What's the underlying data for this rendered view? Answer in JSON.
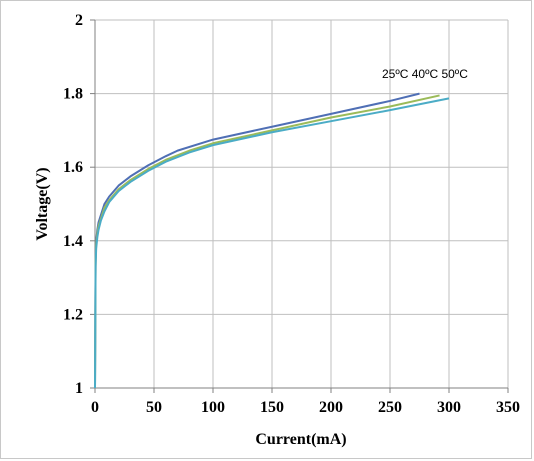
{
  "chart_data": {
    "type": "line",
    "title": "",
    "xlabel": "Current(mA)",
    "ylabel": "Voltage(V)",
    "xlim": [
      0,
      350
    ],
    "ylim": [
      1,
      2
    ],
    "xticks": [
      0,
      50,
      100,
      150,
      200,
      250,
      300,
      350
    ],
    "yticks": [
      1,
      1.2,
      1.4,
      1.6,
      1.8,
      2
    ],
    "ytick_labels": [
      "1",
      "1.2",
      "1.4",
      "1.6",
      "1.8",
      "2"
    ],
    "grid": true,
    "legend": "none",
    "annotation": "25ºC 40ºC 50ºC",
    "series": [
      {
        "color": "#4F6FB5",
        "x": [
          0,
          0.5,
          1,
          2,
          3,
          5,
          8,
          12,
          20,
          30,
          45,
          60,
          70,
          100,
          150,
          200,
          250,
          275
        ],
        "y": [
          1.0,
          1.35,
          1.4,
          1.43,
          1.45,
          1.47,
          1.5,
          1.52,
          1.55,
          1.575,
          1.605,
          1.63,
          1.645,
          1.675,
          1.71,
          1.745,
          1.78,
          1.8
        ]
      },
      {
        "color": "#9BBB59",
        "x": [
          0,
          0.5,
          1,
          2,
          3,
          5,
          8,
          12,
          20,
          30,
          45,
          60,
          80,
          100,
          150,
          200,
          250,
          292
        ],
        "y": [
          1.0,
          1.34,
          1.39,
          1.42,
          1.44,
          1.46,
          1.49,
          1.51,
          1.54,
          1.565,
          1.595,
          1.62,
          1.645,
          1.665,
          1.7,
          1.735,
          1.765,
          1.795
        ]
      },
      {
        "color": "#4BACC6",
        "x": [
          0,
          0.5,
          1,
          2,
          3,
          5,
          8,
          12,
          20,
          30,
          45,
          60,
          80,
          100,
          150,
          200,
          250,
          300
        ],
        "y": [
          1.0,
          1.33,
          1.38,
          1.41,
          1.43,
          1.455,
          1.48,
          1.505,
          1.535,
          1.56,
          1.59,
          1.615,
          1.64,
          1.66,
          1.695,
          1.725,
          1.755,
          1.787
        ]
      }
    ]
  }
}
